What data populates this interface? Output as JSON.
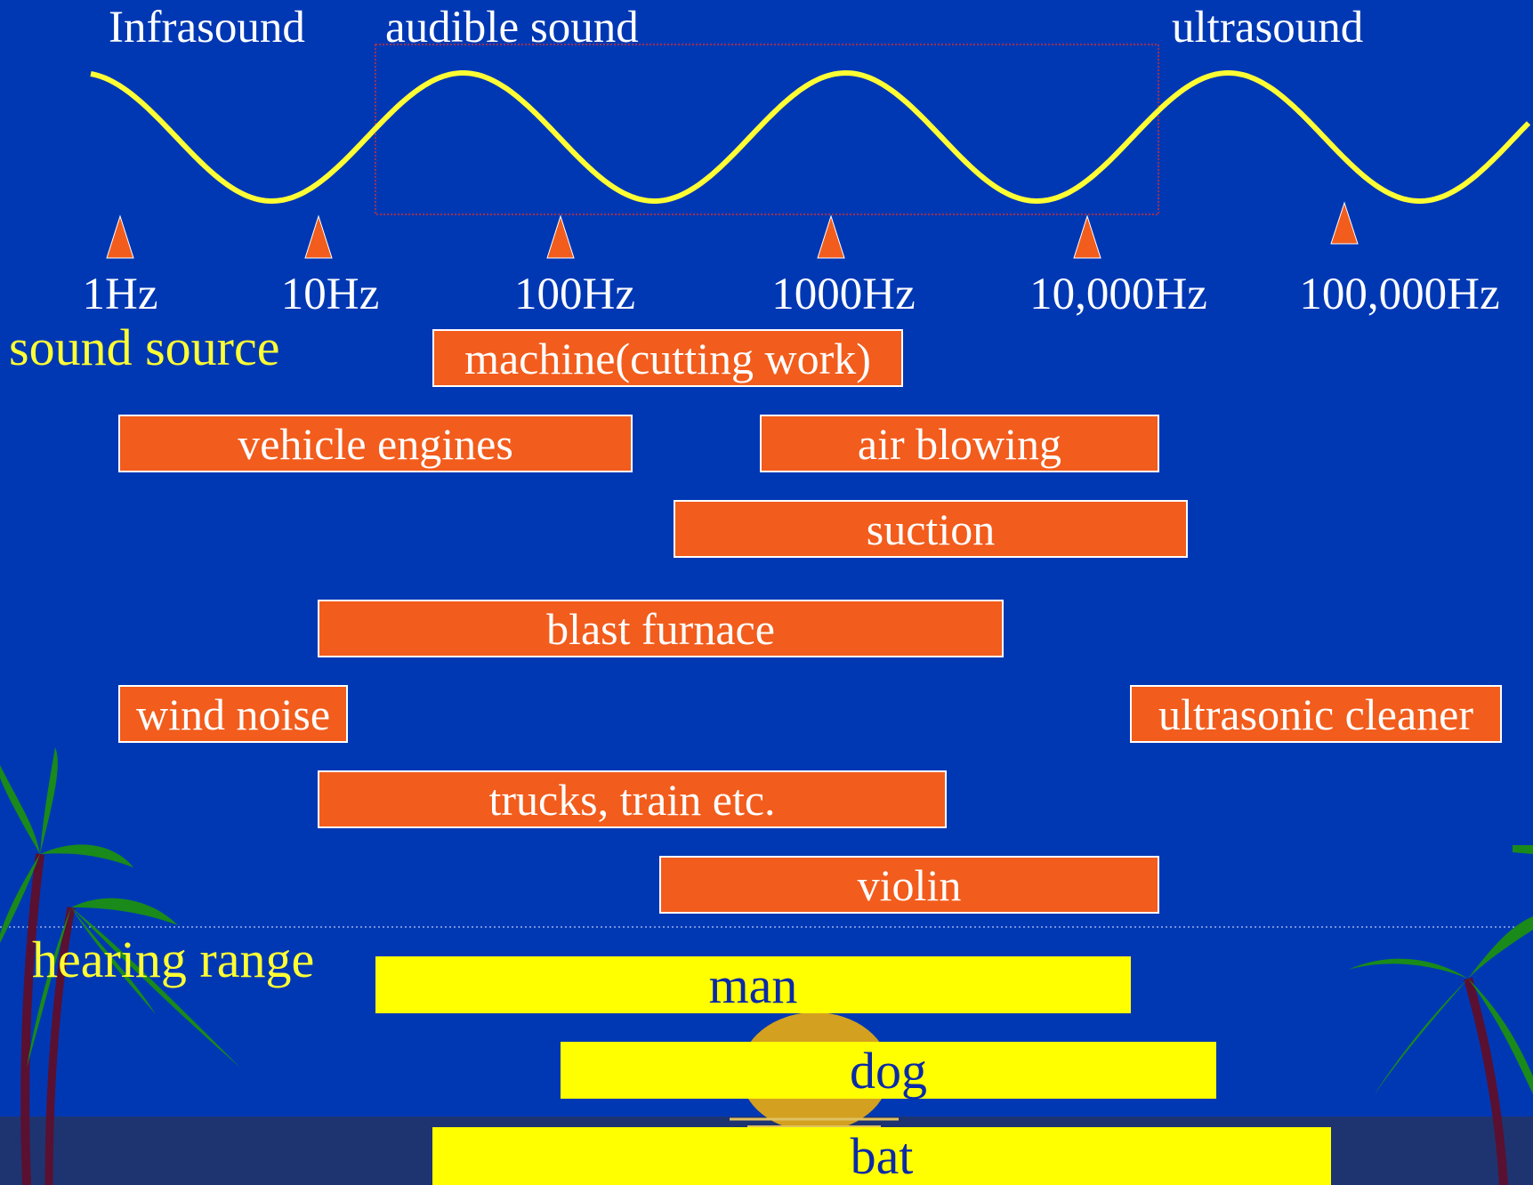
{
  "regions": {
    "infrasound": "Infrasound",
    "audible": "audible sound",
    "ultrasound": "ultrasound"
  },
  "frequencies": [
    "1Hz",
    "10Hz",
    "100Hz",
    "1000Hz",
    "10,000Hz",
    "100,000Hz"
  ],
  "sections": {
    "sound_source": "sound source",
    "hearing_range": "hearing range"
  },
  "sources": [
    "machine(cutting work)",
    "vehicle engines",
    "air blowing",
    "suction",
    "blast furnace",
    "wind noise",
    "ultrasonic cleaner",
    "trucks, train etc.",
    "violin"
  ],
  "hearing": [
    "man",
    "dog",
    "bat"
  ],
  "colors": {
    "background": "#0038b4",
    "wave": "#ffff33",
    "source_bar": "#f25c1c",
    "hearing_bar": "#ffff00",
    "marker": "#f25c1c",
    "palm": "#1a8a1a",
    "sun": "#d4a020"
  }
}
